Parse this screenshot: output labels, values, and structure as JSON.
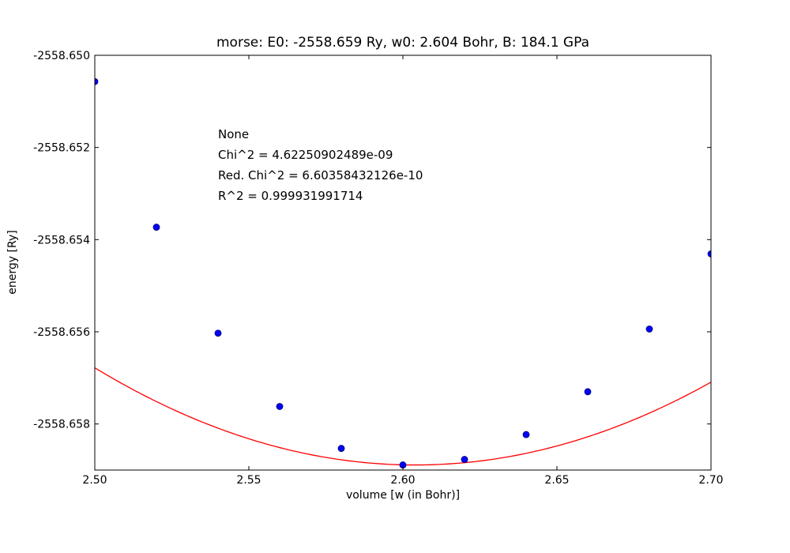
{
  "chart_data": {
    "type": "scatter",
    "title": "morse: E0: -2558.659 Ry, w0: 2.604 Bohr, B: 184.1 GPa",
    "xlabel": "volume [w (in Bohr)]",
    "ylabel": "energy [Ry]",
    "xlim": [
      2.5,
      2.7
    ],
    "ylim": [
      -2558.659,
      -2558.65
    ],
    "x_ticks": [
      2.5,
      2.55,
      2.6,
      2.65,
      2.7
    ],
    "x_tick_labels": [
      "2.50",
      "2.55",
      "2.60",
      "2.65",
      "2.70"
    ],
    "y_ticks": [
      -2558.65,
      -2558.652,
      -2558.654,
      -2558.656,
      -2558.658
    ],
    "y_tick_labels": [
      "-2558.650",
      "-2558.652",
      "-2558.654",
      "-2558.656",
      "-2558.658"
    ],
    "grid": false,
    "annotations": [
      "None",
      "Chi^2 = 4.62250902489e-09",
      "Red. Chi^2 = 6.60358432126e-10",
      "R^2 = 0.999931991714"
    ],
    "series": [
      {
        "kind": "points",
        "color": "#0000ff",
        "edge_color": "#00006e",
        "x": [
          2.5,
          2.52,
          2.54,
          2.56,
          2.58,
          2.6,
          2.62,
          2.64,
          2.66,
          2.68,
          2.7
        ],
        "y": [
          -2558.65057,
          -2558.65373,
          -2558.65603,
          -2558.65762,
          -2558.65853,
          -2558.65889,
          -2558.65877,
          -2558.65823,
          -2558.6573,
          -2558.65594,
          -2558.65431
        ]
      },
      {
        "kind": "fit",
        "color": "#ff0000",
        "E0": -2558.65889,
        "w0": 2.604,
        "curvature": 0.195
      }
    ]
  }
}
